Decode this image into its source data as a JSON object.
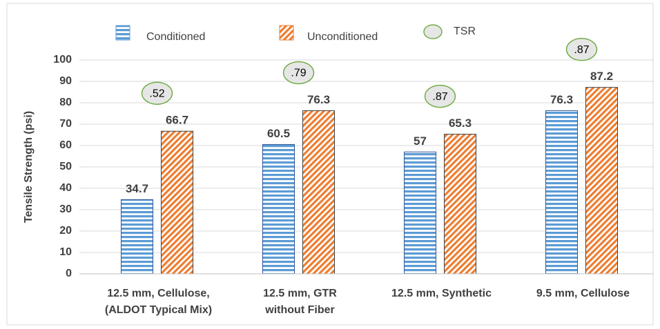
{
  "chart_data": {
    "type": "bar",
    "y_label": "Tensile Strength (psi)",
    "categories": [
      [
        "12.5 mm, Cellulose,",
        "(ALDOT Typical Mix)"
      ],
      [
        "12.5 mm, GTR",
        "without Fiber"
      ],
      [
        "12.5 mm, Synthetic"
      ],
      [
        "9.5 mm, Cellulose"
      ]
    ],
    "series": [
      {
        "name": "Conditioned",
        "color": "#5b9bd5",
        "pattern": "horizontal",
        "values": [
          34.7,
          60.5,
          57,
          76.3
        ]
      },
      {
        "name": "Unconditioned",
        "color": "#ed7d31",
        "pattern": "diagonal",
        "values": [
          66.7,
          76.3,
          65.3,
          87.2
        ]
      },
      {
        "name": "TSR",
        "color": "#e7e6e6",
        "edge_color": "#70ad47",
        "values": [
          0.52,
          0.79,
          0.87,
          0.87
        ],
        "value_labels": [
          ".52",
          ".79",
          ".87",
          ".87"
        ]
      }
    ],
    "ylim": [
      0,
      100
    ],
    "yticks": [
      0,
      10,
      20,
      30,
      40,
      50,
      60,
      70,
      80,
      90,
      100
    ],
    "grid": true
  }
}
